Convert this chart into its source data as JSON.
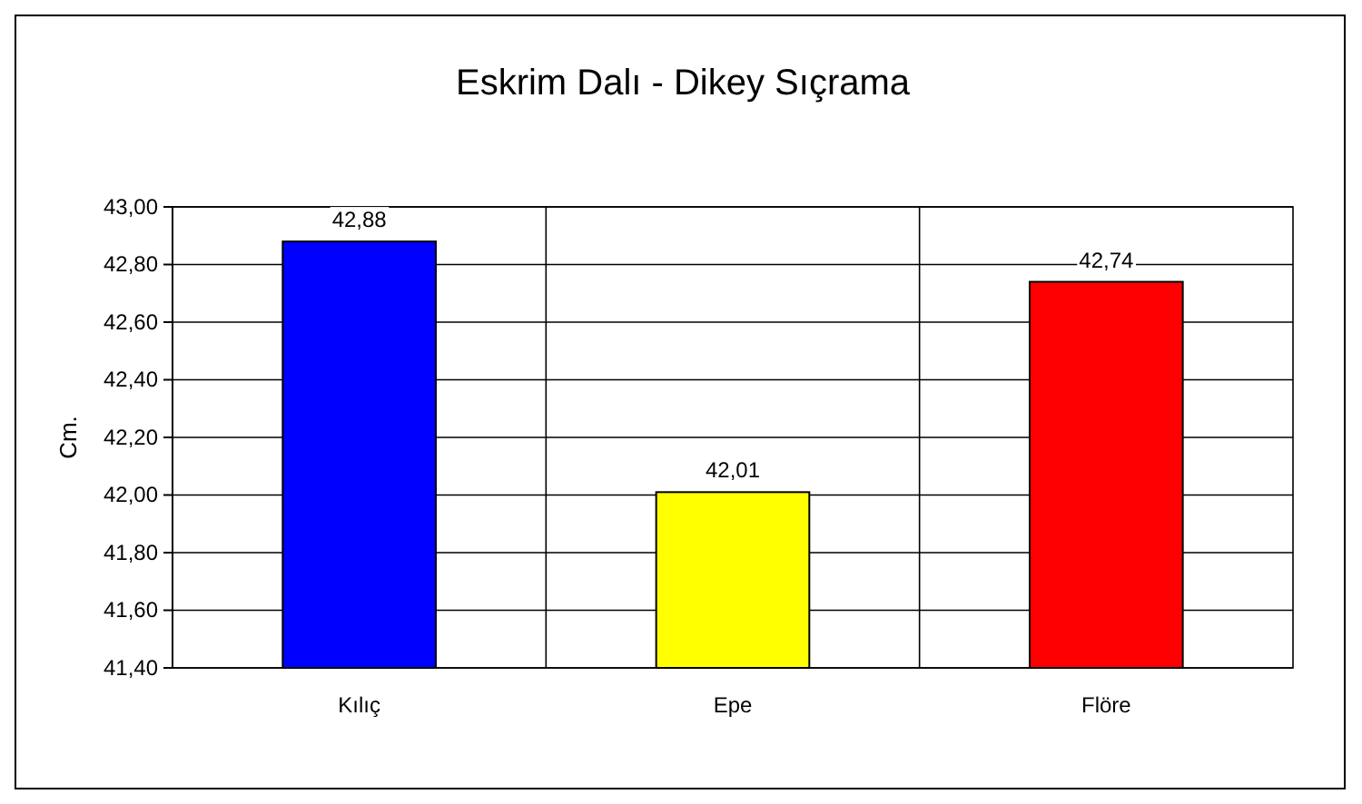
{
  "chart_data": {
    "type": "bar",
    "title": "Eskrim Dalı - Dikey Sıçrama",
    "ylabel": "Cm.",
    "categories": [
      "Kılıç",
      "Epe",
      "Flöre"
    ],
    "values": [
      42.88,
      42.01,
      42.74
    ],
    "colors": [
      "#0000ff",
      "#ffff00",
      "#ff0000"
    ],
    "value_labels": [
      "42,88",
      "42,01",
      "42,74"
    ],
    "ylim": [
      41.4,
      43.0
    ],
    "yticks": [
      {
        "value": 41.4,
        "label": "41,40"
      },
      {
        "value": 41.6,
        "label": "41,60"
      },
      {
        "value": 41.8,
        "label": "41,80"
      },
      {
        "value": 42.0,
        "label": "42,00"
      },
      {
        "value": 42.2,
        "label": "42,20"
      },
      {
        "value": 42.4,
        "label": "42,40"
      },
      {
        "value": 42.6,
        "label": "42,60"
      },
      {
        "value": 42.8,
        "label": "42,80"
      },
      {
        "value": 43.0,
        "label": "43,00"
      }
    ],
    "grid": true
  }
}
